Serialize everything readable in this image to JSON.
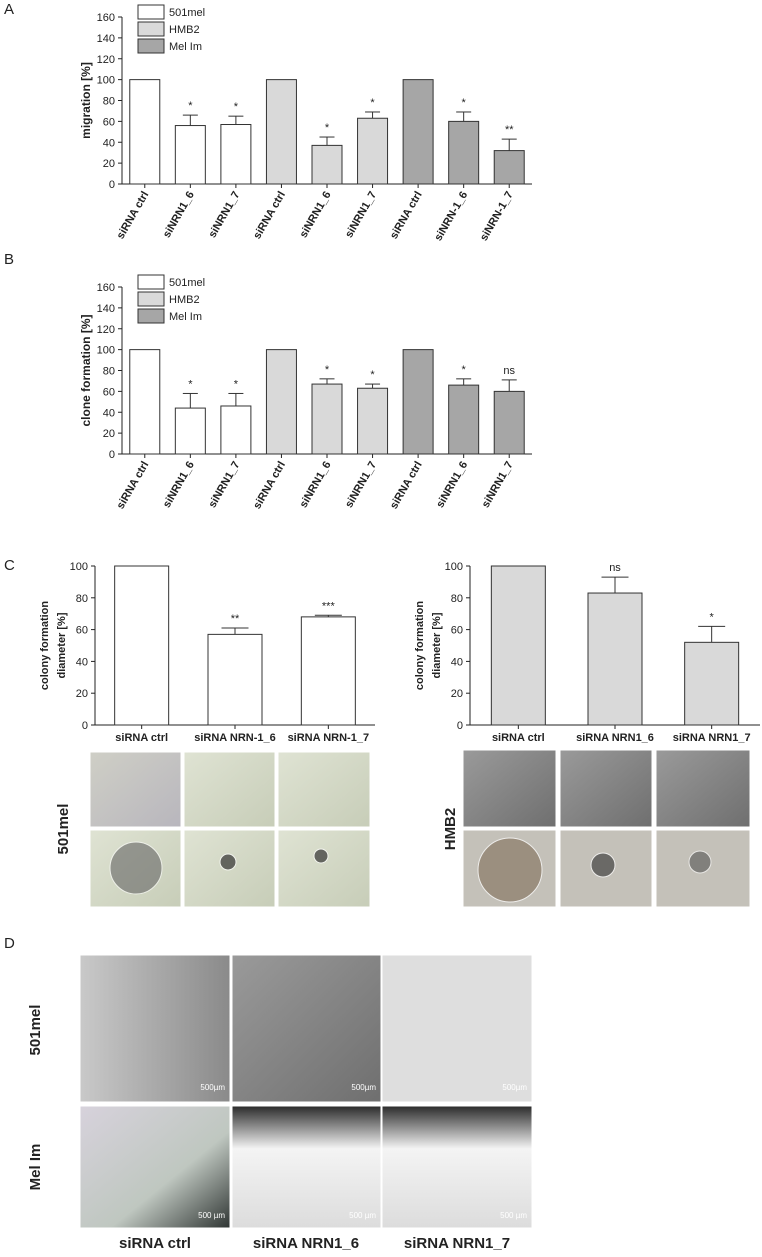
{
  "panel_labels": [
    "A",
    "B",
    "C",
    "D"
  ],
  "chart_data": [
    {
      "type": "bar",
      "y_label": "migration [%]",
      "legend": "top-left",
      "categories": [
        "siRNA ctrl",
        "siNRN1_6",
        "siNRN1_7",
        "siRNA ctrl",
        "siNRN1_6",
        "siNRN1_7",
        "siRNA ctrl",
        "siNRN-1_6",
        "siNRN-1_7"
      ],
      "series": [
        {
          "name": "501mel",
          "color": "#ffffff",
          "values": [
            100,
            56,
            57,
            null,
            null,
            null,
            null,
            null,
            null
          ],
          "errors": [
            0,
            10,
            8,
            null,
            null,
            null,
            null,
            null,
            null
          ]
        },
        {
          "name": "HMB2",
          "color": "#d9d9d9",
          "values": [
            null,
            null,
            null,
            100,
            37,
            63,
            null,
            null,
            null
          ],
          "errors": [
            null,
            null,
            null,
            0,
            8,
            6,
            null,
            null,
            null
          ]
        },
        {
          "name": "Mel Im",
          "color": "#a6a6a6",
          "values": [
            null,
            null,
            null,
            null,
            null,
            null,
            100,
            60,
            32
          ],
          "errors": [
            null,
            null,
            null,
            null,
            null,
            null,
            0,
            9,
            11
          ]
        }
      ],
      "annotations": [
        null,
        "*",
        "*",
        null,
        "*",
        "*",
        null,
        "*",
        "**"
      ],
      "ylim": [
        0,
        160
      ],
      "yticks": [
        0,
        20,
        40,
        60,
        80,
        100,
        120,
        140,
        160
      ]
    },
    {
      "type": "bar",
      "y_label": "clone formation [%]",
      "legend": "top-left",
      "categories": [
        "siRNA ctrl",
        "siNRN1_6",
        "siNRN1_7",
        "siRNA ctrl",
        "siNRN1_6",
        "siNRN1_7",
        "siRNA ctrl",
        "siNRN1_6",
        "siNRN1_7"
      ],
      "series": [
        {
          "name": "501mel",
          "color": "#ffffff",
          "values": [
            100,
            44,
            46,
            null,
            null,
            null,
            null,
            null,
            null
          ],
          "errors": [
            0,
            14,
            12,
            null,
            null,
            null,
            null,
            null,
            null
          ]
        },
        {
          "name": "HMB2",
          "color": "#d9d9d9",
          "values": [
            null,
            null,
            null,
            100,
            67,
            63,
            null,
            null,
            null
          ],
          "errors": [
            null,
            null,
            null,
            0,
            5,
            4,
            null,
            null,
            null
          ]
        },
        {
          "name": "Mel Im",
          "color": "#a6a6a6",
          "values": [
            null,
            null,
            null,
            null,
            null,
            null,
            100,
            66,
            60
          ],
          "errors": [
            null,
            null,
            null,
            null,
            null,
            null,
            0,
            6,
            11
          ]
        }
      ],
      "annotations": [
        null,
        "*",
        "*",
        null,
        "*",
        "*",
        null,
        "*",
        "ns"
      ],
      "ylim": [
        0,
        160
      ],
      "yticks": [
        0,
        20,
        40,
        60,
        80,
        100,
        120,
        140,
        160
      ]
    },
    {
      "type": "bar",
      "y_label": [
        "colony formation",
        "diameter [%]"
      ],
      "categories": [
        "siRNA ctrl",
        "siRNA NRN-1_6",
        "siRNA NRN-1_7"
      ],
      "series": [
        {
          "color": "#ffffff",
          "values": [
            100,
            57,
            68
          ],
          "errors": [
            0,
            4,
            1
          ]
        }
      ],
      "annotations": [
        null,
        "**",
        "***"
      ],
      "ylim": [
        0,
        100
      ],
      "yticks": [
        0,
        20,
        40,
        60,
        80,
        100
      ]
    },
    {
      "type": "bar",
      "y_label": [
        "colony formation",
        "diameter [%]"
      ],
      "categories": [
        "siRNA ctrl",
        "siRNA NRN1_6",
        "siRNA NRN1_7"
      ],
      "series": [
        {
          "color": "#d9d9d9",
          "values": [
            100,
            83,
            52
          ],
          "errors": [
            0,
            10,
            10
          ]
        }
      ],
      "annotations": [
        null,
        "ns",
        "*"
      ],
      "ylim": [
        0,
        100
      ],
      "yticks": [
        0,
        20,
        40,
        60,
        80,
        100
      ]
    }
  ],
  "figure_c": {
    "row_labels": [
      "501mel",
      "HMB2"
    ]
  },
  "figure_d": {
    "row_labels": [
      "501mel",
      "Mel Im"
    ],
    "column_labels": [
      "siRNA ctrl",
      "siRNA NRN1_6",
      "siRNA NRN1_7"
    ],
    "scale_labels": [
      [
        "500µm",
        "500µm",
        "500µm"
      ],
      [
        "500 µm",
        "500 µm",
        "500 µm"
      ]
    ]
  }
}
